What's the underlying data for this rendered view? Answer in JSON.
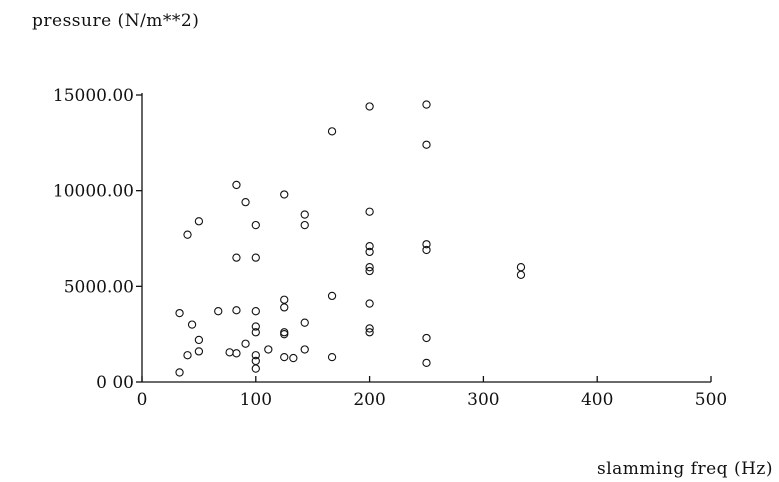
{
  "chart_data": {
    "type": "scatter",
    "title": "",
    "xlabel": "slamming freq (Hz)",
    "ylabel": "pressure (N/m**2)",
    "xlim": [
      0,
      500
    ],
    "ylim": [
      0,
      15000
    ],
    "xticks": [
      0,
      100,
      200,
      300,
      400,
      500
    ],
    "xtick_labels": [
      "0",
      "100",
      "200",
      "300",
      "400",
      "500"
    ],
    "yticks": [
      0,
      5000,
      10000,
      15000
    ],
    "ytick_labels": [
      "0 00",
      "5000.00",
      "10000.00",
      "15000.00"
    ],
    "grid": false,
    "legend": "none",
    "marker": "open-circle",
    "series": [
      {
        "points": [
          [
            33,
            500
          ],
          [
            33,
            3600
          ],
          [
            40,
            1400
          ],
          [
            40,
            7700
          ],
          [
            44,
            3000
          ],
          [
            50,
            1600
          ],
          [
            50,
            2200
          ],
          [
            50,
            8400
          ],
          [
            67,
            3700
          ],
          [
            77,
            1550
          ],
          [
            83,
            1500
          ],
          [
            83,
            3750
          ],
          [
            83,
            6500
          ],
          [
            83,
            10300
          ],
          [
            91,
            2000
          ],
          [
            91,
            9400
          ],
          [
            100,
            700
          ],
          [
            100,
            1100
          ],
          [
            100,
            1400
          ],
          [
            100,
            2600
          ],
          [
            100,
            2900
          ],
          [
            100,
            3700
          ],
          [
            100,
            6500
          ],
          [
            100,
            8200
          ],
          [
            111,
            1700
          ],
          [
            125,
            1300
          ],
          [
            125,
            2500
          ],
          [
            125,
            2600
          ],
          [
            125,
            3900
          ],
          [
            125,
            4300
          ],
          [
            125,
            9800
          ],
          [
            133,
            1250
          ],
          [
            143,
            1700
          ],
          [
            143,
            3100
          ],
          [
            143,
            8200
          ],
          [
            143,
            8750
          ],
          [
            167,
            1300
          ],
          [
            167,
            4500
          ],
          [
            167,
            13100
          ],
          [
            200,
            2600
          ],
          [
            200,
            2800
          ],
          [
            200,
            4100
          ],
          [
            200,
            5800
          ],
          [
            200,
            6000
          ],
          [
            200,
            6800
          ],
          [
            200,
            7100
          ],
          [
            200,
            8900
          ],
          [
            200,
            14400
          ],
          [
            250,
            1000
          ],
          [
            250,
            2300
          ],
          [
            250,
            6900
          ],
          [
            250,
            7200
          ],
          [
            250,
            12400
          ],
          [
            250,
            14500
          ],
          [
            333,
            5600
          ],
          [
            333,
            6000
          ]
        ]
      }
    ]
  }
}
